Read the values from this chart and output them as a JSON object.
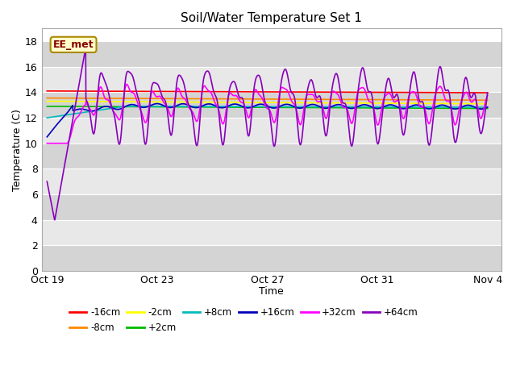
{
  "title": "Soil/Water Temperature Set 1",
  "xlabel": "Time",
  "ylabel": "Temperature (C)",
  "ylim": [
    0,
    19
  ],
  "yticks": [
    0,
    2,
    4,
    6,
    8,
    10,
    12,
    14,
    16,
    18
  ],
  "background_color": "#ffffff",
  "plot_bg_light": "#e8e8e8",
  "plot_bg_dark": "#d4d4d4",
  "label_box": "EE_met",
  "label_box_bg": "#ffffcc",
  "label_box_edge": "#aa8800",
  "label_box_text": "#880000",
  "series": [
    {
      "label": "-16cm",
      "color": "#ff0000",
      "lw": 1.2
    },
    {
      "label": "-8cm",
      "color": "#ff8800",
      "lw": 1.2
    },
    {
      "label": "-2cm",
      "color": "#ffff00",
      "lw": 1.2
    },
    {
      "label": "+2cm",
      "color": "#00bb00",
      "lw": 1.2
    },
    {
      "label": "+8cm",
      "color": "#00bbbb",
      "lw": 1.2
    },
    {
      "label": "+16cm",
      "color": "#0000bb",
      "lw": 1.2
    },
    {
      "label": "+32cm",
      "color": "#ff00ff",
      "lw": 1.2
    },
    {
      "label": "+64cm",
      "color": "#8800bb",
      "lw": 1.2
    }
  ],
  "xtick_labels": [
    "Oct 19",
    "Oct 23",
    "Oct 27",
    "Oct 31",
    "Nov 4"
  ],
  "xtick_positions": [
    0,
    4,
    8,
    12,
    16
  ],
  "n_days": 17
}
